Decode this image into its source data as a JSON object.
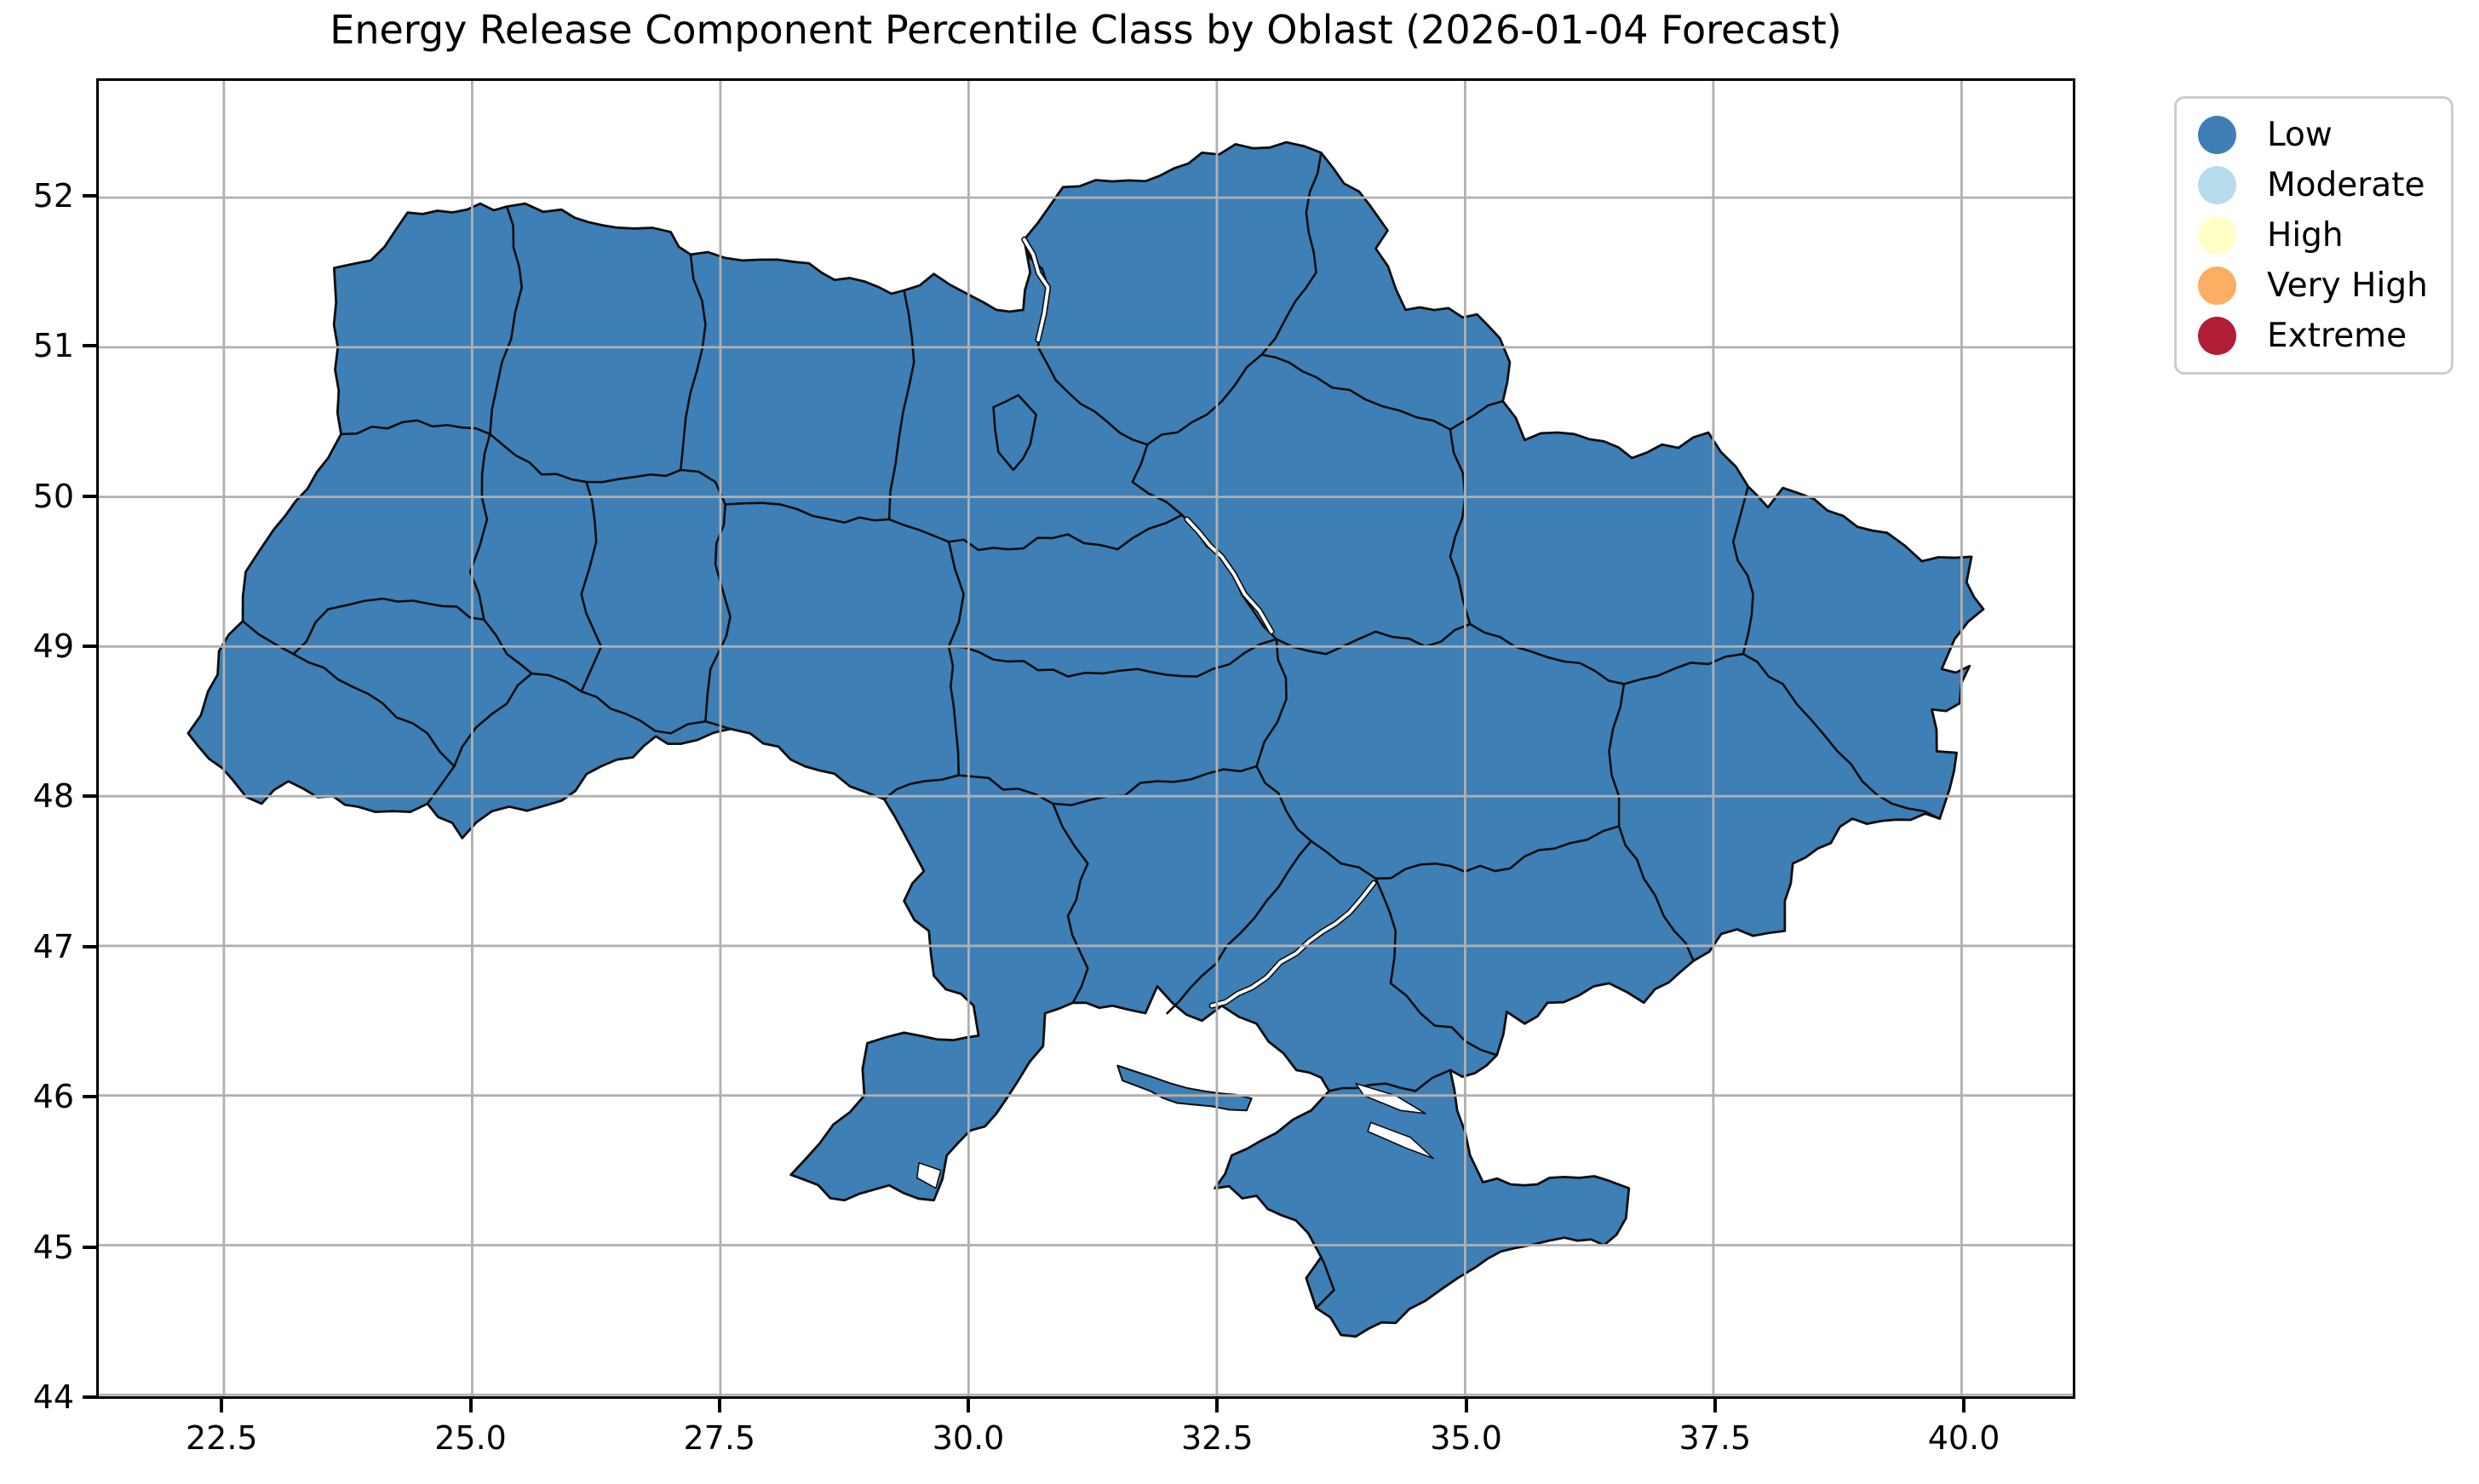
{
  "title": "Energy Release Component Percentile Class by Oblast (2026-01-04 Forecast)",
  "legend": {
    "border_color": "#cccccc",
    "items": [
      {
        "label": "Low",
        "color": "#3e7fb6"
      },
      {
        "label": "Moderate",
        "color": "#b6dcec"
      },
      {
        "label": "High",
        "color": "#ffffc6"
      },
      {
        "label": "Very High",
        "color": "#fcae63"
      },
      {
        "label": "Extreme",
        "color": "#b01e35"
      }
    ]
  },
  "axes": {
    "x_ticks": [
      "22.5",
      "25.0",
      "27.5",
      "30.0",
      "32.5",
      "35.0",
      "37.5",
      "40.0"
    ],
    "y_ticks": [
      "44",
      "45",
      "46",
      "47",
      "48",
      "49",
      "50",
      "51",
      "52"
    ],
    "grid_color": "#b0b0b0",
    "spine_color": "#000000"
  },
  "map": {
    "boundary_color": "#0d0d0d",
    "all_regions_class": "Low",
    "note": "Every oblast polygon is filled with the Low class color"
  },
  "chart_data": {
    "type": "choropleth",
    "title": "Energy Release Component Percentile Class by Oblast (2026-01-04 Forecast)",
    "metric": "Energy Release Component percentile class",
    "forecast_date": "2026-01-04",
    "region": "Ukraine, oblast-level polygons (incl. Crimea and Kyiv city)",
    "classes": [
      "Low",
      "Moderate",
      "High",
      "Very High",
      "Extreme"
    ],
    "class_colors": {
      "Low": "#3e7fb6",
      "Moderate": "#b6dcec",
      "High": "#ffffc6",
      "Very High": "#fcae63",
      "Extreme": "#b01e35"
    },
    "values": "All oblasts displayed in the Low class",
    "x_axis": {
      "meaning": "longitude (degrees E)",
      "ticks": [
        22.5,
        25.0,
        27.5,
        30.0,
        32.5,
        35.0,
        37.5,
        40.0
      ],
      "range": [
        21.24,
        41.12
      ]
    },
    "y_axis": {
      "meaning": "latitude (degrees N)",
      "ticks": [
        44,
        45,
        46,
        47,
        48,
        49,
        50,
        51,
        52
      ],
      "range": [
        43.99,
        52.78
      ]
    },
    "grid": true,
    "legend_position": "outside upper right"
  }
}
